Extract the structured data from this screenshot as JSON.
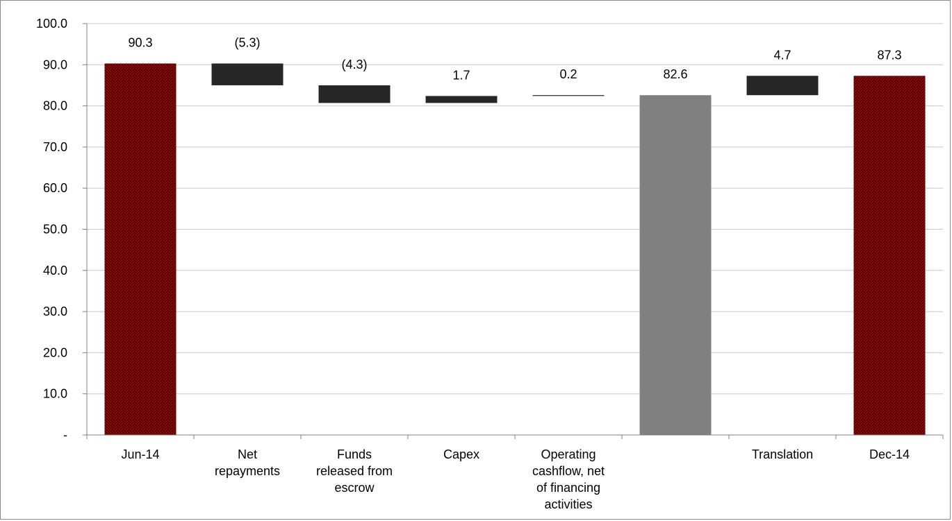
{
  "chart_data": {
    "type": "bar",
    "subtype": "waterfall",
    "title": "",
    "xlabel": "",
    "ylabel": "",
    "ylim": [
      0,
      100
    ],
    "yticks": [
      0,
      10,
      20,
      30,
      40,
      50,
      60,
      70,
      80,
      90,
      100
    ],
    "ytick_labels": [
      "-",
      "10.0",
      "20.0",
      "30.0",
      "40.0",
      "50.0",
      "60.0",
      "70.0",
      "80.0",
      "90.0",
      "100.0"
    ],
    "grid": true,
    "legend": "none",
    "colors": {
      "total": "#6b0000",
      "subtotal": "#808080",
      "change": "#262626",
      "grid": "#c8c8c8",
      "axis": "#808080"
    },
    "bars": [
      {
        "category": [
          "Jun-14"
        ],
        "kind": "total",
        "base": 0,
        "top": 90.3,
        "label": "90.3"
      },
      {
        "category": [
          "Net",
          "repayments"
        ],
        "kind": "change",
        "base": 85.0,
        "top": 90.3,
        "label": "(5.3)"
      },
      {
        "category": [
          "Funds",
          "released from",
          "escrow"
        ],
        "kind": "change",
        "base": 80.7,
        "top": 85.0,
        "label": "(4.3)"
      },
      {
        "category": [
          "Capex"
        ],
        "kind": "change",
        "base": 80.7,
        "top": 82.4,
        "label": "1.7"
      },
      {
        "category": [
          "Operating",
          "cashflow, net",
          "of financing",
          "activities"
        ],
        "kind": "change",
        "base": 82.4,
        "top": 82.6,
        "label": "0.2"
      },
      {
        "category": [],
        "kind": "subtotal",
        "base": 0,
        "top": 82.6,
        "label": "82.6"
      },
      {
        "category": [
          "Translation"
        ],
        "kind": "change",
        "base": 82.6,
        "top": 87.3,
        "label": "4.7"
      },
      {
        "category": [
          "Dec-14"
        ],
        "kind": "total",
        "base": 0,
        "top": 87.3,
        "label": "87.3"
      }
    ]
  }
}
